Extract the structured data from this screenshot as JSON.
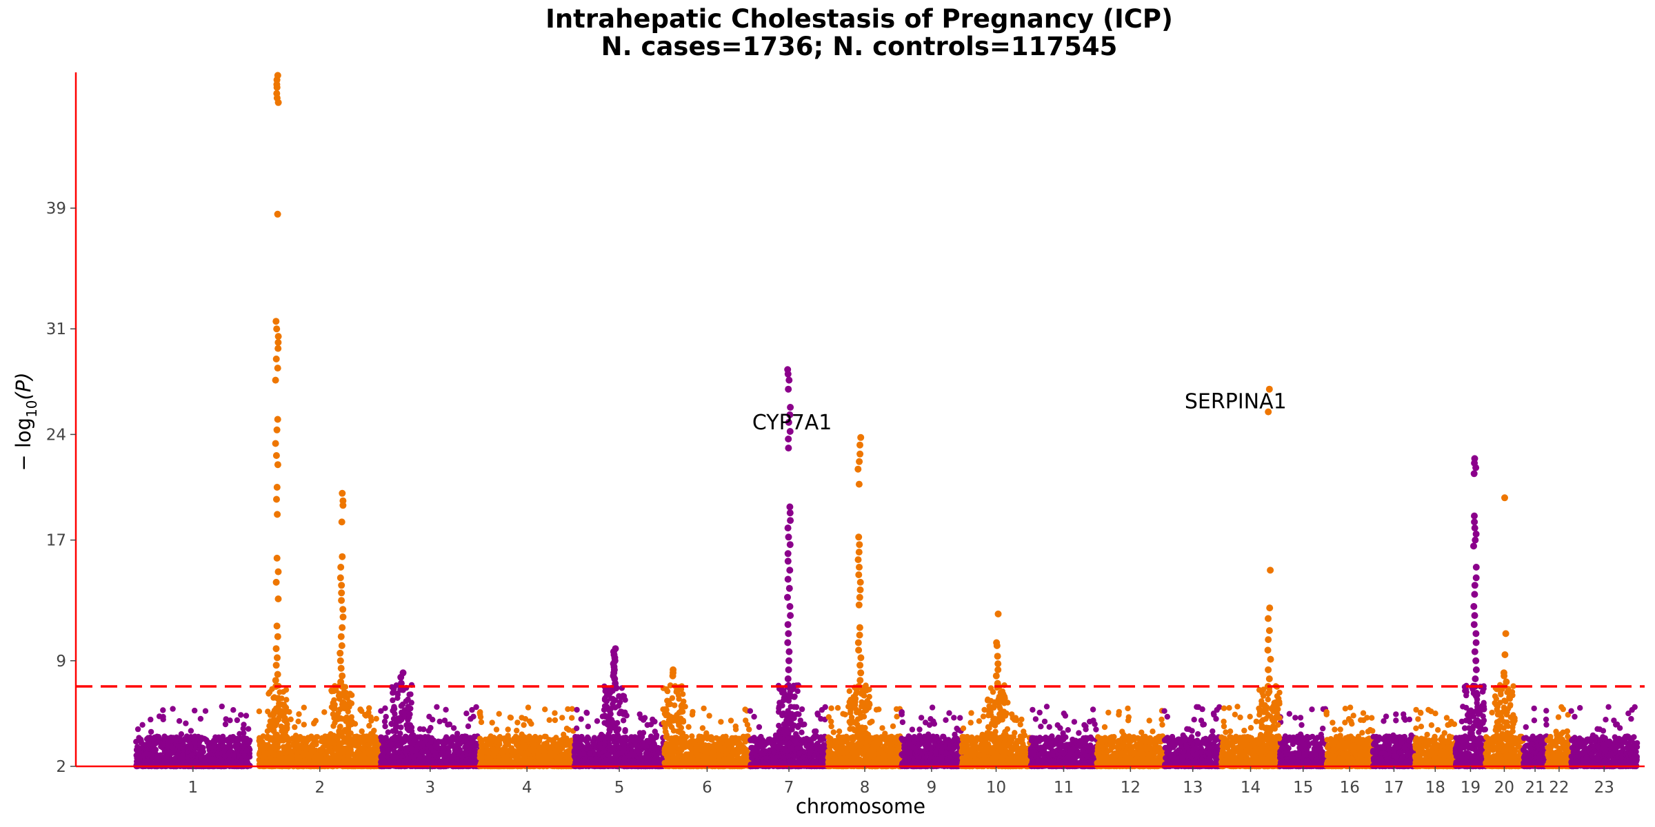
{
  "chart_data": {
    "type": "scatter",
    "subtype": "manhattan",
    "title_line1": "Intrahepatic Cholestasis of Pregnancy (ICP)",
    "title_line2": "N. cases=1736; N. controls=117545",
    "xlabel": "chromosome",
    "ylabel_prefix": "− log",
    "ylabel_sub": "10",
    "ylabel_suffix": "(P)",
    "ylim": [
      2,
      48
    ],
    "yticks": [
      2,
      9,
      17,
      24,
      31,
      39
    ],
    "significance_threshold": 7.3,
    "colors": {
      "odd": "#8B008B",
      "even": "#EE7600",
      "threshold": "#FF0000",
      "axis": "#FF0000"
    },
    "chromosomes": [
      {
        "label": "1",
        "start": 0.0,
        "end": 7.6
      },
      {
        "label": "2",
        "start": 8.2,
        "end": 16.3
      },
      {
        "label": "3",
        "start": 16.3,
        "end": 22.9
      },
      {
        "label": "4",
        "start": 22.9,
        "end": 29.2
      },
      {
        "label": "5",
        "start": 29.2,
        "end": 35.2
      },
      {
        "label": "6",
        "start": 35.2,
        "end": 40.9
      },
      {
        "label": "7",
        "start": 40.9,
        "end": 46.1
      },
      {
        "label": "8",
        "start": 46.1,
        "end": 51.0
      },
      {
        "label": "9",
        "start": 51.0,
        "end": 55.0
      },
      {
        "label": "10",
        "start": 55.0,
        "end": 59.6
      },
      {
        "label": "11",
        "start": 59.6,
        "end": 64.0
      },
      {
        "label": "12",
        "start": 64.0,
        "end": 68.5
      },
      {
        "label": "13",
        "start": 68.5,
        "end": 72.3
      },
      {
        "label": "14",
        "start": 72.3,
        "end": 76.2
      },
      {
        "label": "15",
        "start": 76.2,
        "end": 79.3
      },
      {
        "label": "16",
        "start": 79.3,
        "end": 82.4
      },
      {
        "label": "17",
        "start": 82.4,
        "end": 85.2
      },
      {
        "label": "18",
        "start": 85.2,
        "end": 87.9
      },
      {
        "label": "19",
        "start": 87.9,
        "end": 89.9
      },
      {
        "label": "20",
        "start": 89.9,
        "end": 92.4
      },
      {
        "label": "21",
        "start": 92.4,
        "end": 94.0
      },
      {
        "label": "22",
        "start": 94.0,
        "end": 95.6
      },
      {
        "label": "23",
        "start": 95.6,
        "end": 100.0
      }
    ],
    "peaks": [
      {
        "chr": "2",
        "pos": 9.4,
        "top": 47.8,
        "values": [
          47.8,
          47.5,
          47.2,
          47.0,
          46.6,
          46.3,
          46.0,
          38.6,
          31.5,
          31.0,
          30.5,
          30.1,
          29.7,
          29.0,
          28.4,
          27.6,
          25.0,
          24.3,
          23.4,
          22.6,
          22.0,
          20.5,
          19.7,
          18.7,
          15.8,
          14.9,
          14.2,
          13.1,
          11.3,
          10.6,
          9.8,
          9.2,
          8.7,
          8.1,
          7.7,
          7.3
        ]
      },
      {
        "chr": "2",
        "pos": 13.7,
        "top": 20.1,
        "values": [
          20.1,
          19.6,
          19.3,
          18.2,
          15.9,
          15.2,
          14.5,
          14.0,
          13.5,
          13.0,
          12.4,
          11.9,
          11.2,
          10.6,
          10.0,
          9.5,
          9.0,
          8.5,
          8.0,
          7.6,
          7.3
        ]
      },
      {
        "chr": "3",
        "pos": 17.7,
        "top": 8.2,
        "values": [
          8.2,
          7.9,
          7.5,
          7.1
        ]
      },
      {
        "chr": "5",
        "pos": 31.9,
        "top": 9.8,
        "values": [
          9.8,
          9.6,
          9.4,
          9.2,
          9.0,
          8.8,
          8.6,
          8.4,
          8.2,
          8.0,
          7.8,
          7.5,
          7.2
        ]
      },
      {
        "chr": "6",
        "pos": 35.8,
        "top": 8.4,
        "values": [
          8.4,
          8.2,
          8.0
        ]
      },
      {
        "chr": "7",
        "pos": 43.5,
        "top": 28.3,
        "values": [
          28.3,
          28.0,
          27.6,
          27.0,
          25.8,
          25.3,
          24.8,
          24.2,
          23.7,
          23.1,
          19.2,
          18.8,
          18.3,
          17.8,
          17.2,
          16.7,
          16.1,
          15.6,
          15.0,
          14.4,
          13.8,
          13.2,
          12.6,
          12.0,
          11.4,
          10.8,
          10.2,
          9.6,
          9.0,
          8.4,
          7.8,
          7.3
        ]
      },
      {
        "chr": "8",
        "pos": 48.2,
        "top": 23.8,
        "values": [
          23.8,
          23.3,
          22.7,
          22.2,
          21.7,
          20.7,
          17.2,
          16.7,
          16.2,
          15.7,
          15.2,
          14.7,
          14.2,
          13.7,
          13.2,
          12.7,
          11.2,
          10.7,
          10.2,
          9.7,
          9.2,
          8.7,
          8.2,
          7.7,
          7.3
        ]
      },
      {
        "chr": "10",
        "pos": 57.4,
        "top": 12.1,
        "values": [
          12.1,
          10.2,
          10.0,
          9.3,
          8.8,
          8.4,
          8.0,
          7.5
        ]
      },
      {
        "chr": "14",
        "pos": 75.5,
        "top": 27.0,
        "values": [
          27.0,
          25.5,
          15.0,
          12.5,
          11.8,
          11.0,
          10.4,
          9.7,
          9.1,
          8.4,
          7.8,
          7.3
        ]
      },
      {
        "chr": "19",
        "pos": 89.2,
        "top": 22.4,
        "values": [
          22.4,
          22.1,
          21.8,
          21.4,
          18.6,
          18.2,
          17.8,
          17.4,
          17.0,
          16.6,
          15.2,
          14.5,
          14.0,
          13.4,
          12.6,
          12.0,
          11.4,
          10.8,
          10.2,
          9.6,
          9.0,
          8.4,
          7.8,
          7.3
        ]
      },
      {
        "chr": "20",
        "pos": 91.2,
        "top": 19.8,
        "values": [
          19.8,
          10.8,
          9.4,
          8.2,
          8.0,
          7.6
        ]
      }
    ],
    "annotations": [
      {
        "text": "CYP7A1",
        "chr": "8"
      },
      {
        "text": "SERPINA1",
        "chr": "14"
      }
    ]
  }
}
